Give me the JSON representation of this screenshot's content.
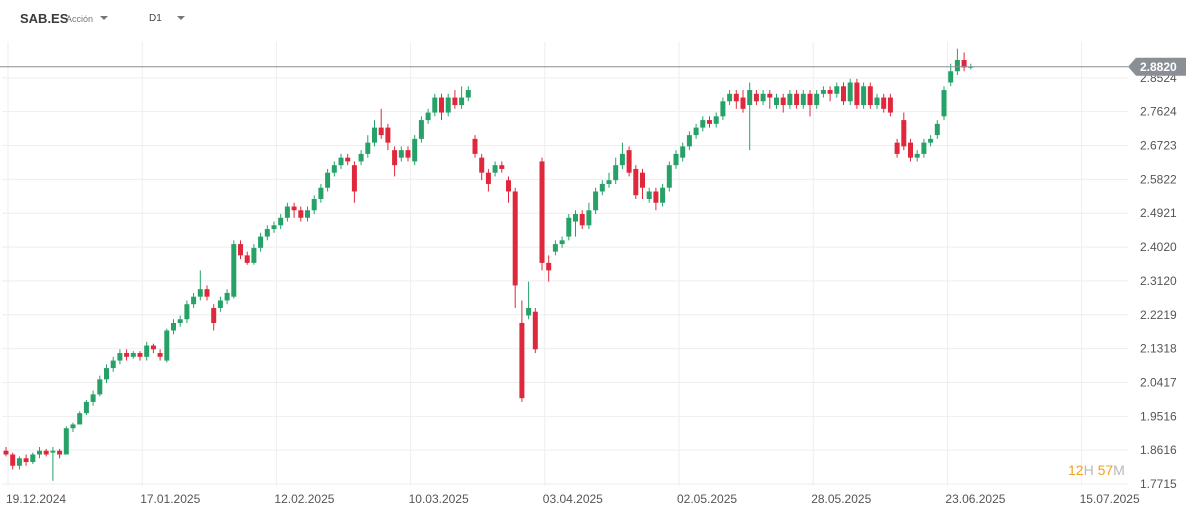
{
  "header": {
    "symbol": "SAB.ES",
    "instrument_type": "Acción",
    "timeframe": "D1"
  },
  "countdown": {
    "hours": "12",
    "hours_unit": "H",
    "minutes": "57",
    "minutes_unit": "M"
  },
  "colors": {
    "up": "#26a269",
    "down": "#e0283c",
    "price_line": "#8a8f96",
    "price_label_bg": "#8a8f96"
  },
  "chart_data": {
    "type": "candlestick",
    "current_price": "2.8820",
    "y_ticks": [
      "2.8524",
      "2.7624",
      "2.6723",
      "2.5822",
      "2.4921",
      "2.4020",
      "2.3120",
      "2.2219",
      "2.1318",
      "2.0417",
      "1.9516",
      "1.8616",
      "1.7715"
    ],
    "x_ticks": [
      "19.12.2024",
      "17.01.2025",
      "12.02.2025",
      "10.03.2025",
      "03.04.2025",
      "02.05.2025",
      "28.05.2025",
      "23.06.2025",
      "15.07.2025"
    ],
    "ylim": [
      1.7715,
      2.9425
    ],
    "candles": [
      [
        1.86,
        1.85,
        1.87,
        1.845
      ],
      [
        1.85,
        1.82,
        1.855,
        1.81
      ],
      [
        1.82,
        1.84,
        1.845,
        1.81
      ],
      [
        1.84,
        1.83,
        1.85,
        1.82
      ],
      [
        1.83,
        1.85,
        1.855,
        1.825
      ],
      [
        1.85,
        1.86,
        1.87,
        1.84
      ],
      [
        1.86,
        1.85,
        1.865,
        1.845
      ],
      [
        1.855,
        1.86,
        1.87,
        1.78
      ],
      [
        1.86,
        1.85,
        1.865,
        1.84
      ],
      [
        1.85,
        1.92,
        1.925,
        1.85
      ],
      [
        1.92,
        1.93,
        1.935,
        1.91
      ],
      [
        1.93,
        1.96,
        1.965,
        1.93
      ],
      [
        1.96,
        1.99,
        1.995,
        1.955
      ],
      [
        1.99,
        2.01,
        2.02,
        1.98
      ],
      [
        2.01,
        2.05,
        2.06,
        2.005
      ],
      [
        2.05,
        2.08,
        2.09,
        2.04
      ],
      [
        2.08,
        2.1,
        2.11,
        2.07
      ],
      [
        2.1,
        2.12,
        2.13,
        2.09
      ],
      [
        2.12,
        2.11,
        2.13,
        2.1
      ],
      [
        2.11,
        2.12,
        2.125,
        2.105
      ],
      [
        2.12,
        2.11,
        2.125,
        2.1
      ],
      [
        2.11,
        2.14,
        2.15,
        2.1
      ],
      [
        2.14,
        2.13,
        2.145,
        2.12
      ],
      [
        2.12,
        2.11,
        2.13,
        2.1
      ],
      [
        2.1,
        2.18,
        2.185,
        2.095
      ],
      [
        2.18,
        2.2,
        2.21,
        2.17
      ],
      [
        2.2,
        2.21,
        2.22,
        2.19
      ],
      [
        2.21,
        2.25,
        2.26,
        2.2
      ],
      [
        2.25,
        2.27,
        2.28,
        2.24
      ],
      [
        2.27,
        2.29,
        2.34,
        2.26
      ],
      [
        2.29,
        2.27,
        2.3,
        2.26
      ],
      [
        2.24,
        2.2,
        2.25,
        2.18
      ],
      [
        2.24,
        2.26,
        2.27,
        2.23
      ],
      [
        2.26,
        2.28,
        2.29,
        2.25
      ],
      [
        2.27,
        2.41,
        2.42,
        2.265
      ],
      [
        2.41,
        2.38,
        2.42,
        2.37
      ],
      [
        2.38,
        2.36,
        2.39,
        2.355
      ],
      [
        2.36,
        2.4,
        2.41,
        2.355
      ],
      [
        2.4,
        2.43,
        2.44,
        2.39
      ],
      [
        2.43,
        2.45,
        2.46,
        2.42
      ],
      [
        2.45,
        2.46,
        2.47,
        2.44
      ],
      [
        2.46,
        2.48,
        2.49,
        2.45
      ],
      [
        2.48,
        2.51,
        2.52,
        2.47
      ],
      [
        2.51,
        2.5,
        2.52,
        2.48
      ],
      [
        2.5,
        2.48,
        2.51,
        2.47
      ],
      [
        2.48,
        2.5,
        2.51,
        2.47
      ],
      [
        2.5,
        2.53,
        2.54,
        2.49
      ],
      [
        2.53,
        2.56,
        2.57,
        2.52
      ],
      [
        2.56,
        2.6,
        2.61,
        2.55
      ],
      [
        2.6,
        2.62,
        2.63,
        2.59
      ],
      [
        2.62,
        2.64,
        2.65,
        2.61
      ],
      [
        2.64,
        2.63,
        2.65,
        2.62
      ],
      [
        2.62,
        2.55,
        2.63,
        2.52
      ],
      [
        2.63,
        2.65,
        2.66,
        2.62
      ],
      [
        2.65,
        2.68,
        2.7,
        2.64
      ],
      [
        2.68,
        2.72,
        2.74,
        2.67
      ],
      [
        2.72,
        2.7,
        2.77,
        2.69
      ],
      [
        2.72,
        2.68,
        2.73,
        2.66
      ],
      [
        2.66,
        2.62,
        2.67,
        2.59
      ],
      [
        2.64,
        2.66,
        2.67,
        2.63
      ],
      [
        2.66,
        2.64,
        2.67,
        2.63
      ],
      [
        2.63,
        2.69,
        2.7,
        2.62
      ],
      [
        2.69,
        2.74,
        2.75,
        2.68
      ],
      [
        2.74,
        2.76,
        2.77,
        2.73
      ],
      [
        2.76,
        2.8,
        2.81,
        2.75
      ],
      [
        2.8,
        2.76,
        2.81,
        2.74
      ],
      [
        2.76,
        2.8,
        2.81,
        2.75
      ],
      [
        2.8,
        2.78,
        2.82,
        2.77
      ],
      [
        2.78,
        2.8,
        2.83,
        2.77
      ],
      [
        2.8,
        2.82,
        2.83,
        2.79
      ],
      [
        2.69,
        2.65,
        2.7,
        2.64
      ],
      [
        2.64,
        2.6,
        2.65,
        2.58
      ],
      [
        2.6,
        2.57,
        2.61,
        2.55
      ],
      [
        2.6,
        2.62,
        2.63,
        2.59
      ],
      [
        2.62,
        2.61,
        2.63,
        2.6
      ],
      [
        2.58,
        2.55,
        2.59,
        2.52
      ],
      [
        2.55,
        2.3,
        2.56,
        2.24
      ],
      [
        2.2,
        2.0,
        2.26,
        1.99
      ],
      [
        2.22,
        2.24,
        2.31,
        2.21
      ],
      [
        2.23,
        2.13,
        2.24,
        2.12
      ],
      [
        2.63,
        2.36,
        2.64,
        2.34
      ],
      [
        2.36,
        2.34,
        2.38,
        2.31
      ],
      [
        2.39,
        2.41,
        2.42,
        2.38
      ],
      [
        2.41,
        2.42,
        2.43,
        2.4
      ],
      [
        2.43,
        2.48,
        2.49,
        2.42
      ],
      [
        2.47,
        2.49,
        2.5,
        2.43
      ],
      [
        2.49,
        2.46,
        2.5,
        2.45
      ],
      [
        2.46,
        2.5,
        2.52,
        2.45
      ],
      [
        2.5,
        2.55,
        2.56,
        2.49
      ],
      [
        2.55,
        2.57,
        2.58,
        2.54
      ],
      [
        2.57,
        2.58,
        2.6,
        2.56
      ],
      [
        2.58,
        2.62,
        2.64,
        2.57
      ],
      [
        2.62,
        2.65,
        2.68,
        2.61
      ],
      [
        2.66,
        2.6,
        2.67,
        2.59
      ],
      [
        2.61,
        2.54,
        2.62,
        2.53
      ],
      [
        2.6,
        2.56,
        2.61,
        2.53
      ],
      [
        2.53,
        2.55,
        2.56,
        2.52
      ],
      [
        2.55,
        2.52,
        2.56,
        2.5
      ],
      [
        2.52,
        2.56,
        2.57,
        2.51
      ],
      [
        2.56,
        2.62,
        2.63,
        2.55
      ],
      [
        2.62,
        2.65,
        2.66,
        2.61
      ],
      [
        2.64,
        2.67,
        2.68,
        2.63
      ],
      [
        2.67,
        2.7,
        2.71,
        2.66
      ],
      [
        2.7,
        2.72,
        2.73,
        2.69
      ],
      [
        2.72,
        2.74,
        2.75,
        2.71
      ],
      [
        2.74,
        2.73,
        2.75,
        2.72
      ],
      [
        2.73,
        2.75,
        2.76,
        2.72
      ],
      [
        2.75,
        2.79,
        2.8,
        2.74
      ],
      [
        2.79,
        2.81,
        2.82,
        2.78
      ],
      [
        2.81,
        2.79,
        2.82,
        2.77
      ],
      [
        2.8,
        2.77,
        2.82,
        2.76
      ],
      [
        2.78,
        2.82,
        2.84,
        2.66
      ],
      [
        2.81,
        2.79,
        2.82,
        2.78
      ],
      [
        2.79,
        2.81,
        2.82,
        2.78
      ],
      [
        2.81,
        2.8,
        2.82,
        2.77
      ],
      [
        2.78,
        2.8,
        2.81,
        2.77
      ],
      [
        2.8,
        2.78,
        2.81,
        2.76
      ],
      [
        2.78,
        2.81,
        2.82,
        2.77
      ],
      [
        2.81,
        2.78,
        2.82,
        2.77
      ],
      [
        2.78,
        2.81,
        2.82,
        2.77
      ],
      [
        2.81,
        2.78,
        2.82,
        2.75
      ],
      [
        2.78,
        2.81,
        2.82,
        2.77
      ],
      [
        2.81,
        2.82,
        2.83,
        2.8
      ],
      [
        2.82,
        2.81,
        2.83,
        2.79
      ],
      [
        2.81,
        2.83,
        2.84,
        2.8
      ],
      [
        2.83,
        2.79,
        2.84,
        2.78
      ],
      [
        2.79,
        2.84,
        2.85,
        2.78
      ],
      [
        2.84,
        2.78,
        2.85,
        2.77
      ],
      [
        2.78,
        2.83,
        2.84,
        2.77
      ],
      [
        2.83,
        2.78,
        2.84,
        2.77
      ],
      [
        2.78,
        2.8,
        2.81,
        2.77
      ],
      [
        2.8,
        2.77,
        2.81,
        2.76
      ],
      [
        2.8,
        2.76,
        2.81,
        2.75
      ],
      [
        2.68,
        2.65,
        2.69,
        2.64
      ],
      [
        2.74,
        2.67,
        2.76,
        2.66
      ],
      [
        2.68,
        2.64,
        2.69,
        2.63
      ],
      [
        2.64,
        2.65,
        2.66,
        2.63
      ],
      [
        2.65,
        2.68,
        2.69,
        2.64
      ],
      [
        2.68,
        2.69,
        2.7,
        2.67
      ],
      [
        2.7,
        2.73,
        2.74,
        2.69
      ],
      [
        2.75,
        2.82,
        2.83,
        2.74
      ],
      [
        2.84,
        2.87,
        2.89,
        2.83
      ],
      [
        2.87,
        2.9,
        2.93,
        2.86
      ],
      [
        2.9,
        2.88,
        2.92,
        2.87
      ],
      [
        2.88,
        2.882,
        2.89,
        2.875
      ]
    ]
  }
}
